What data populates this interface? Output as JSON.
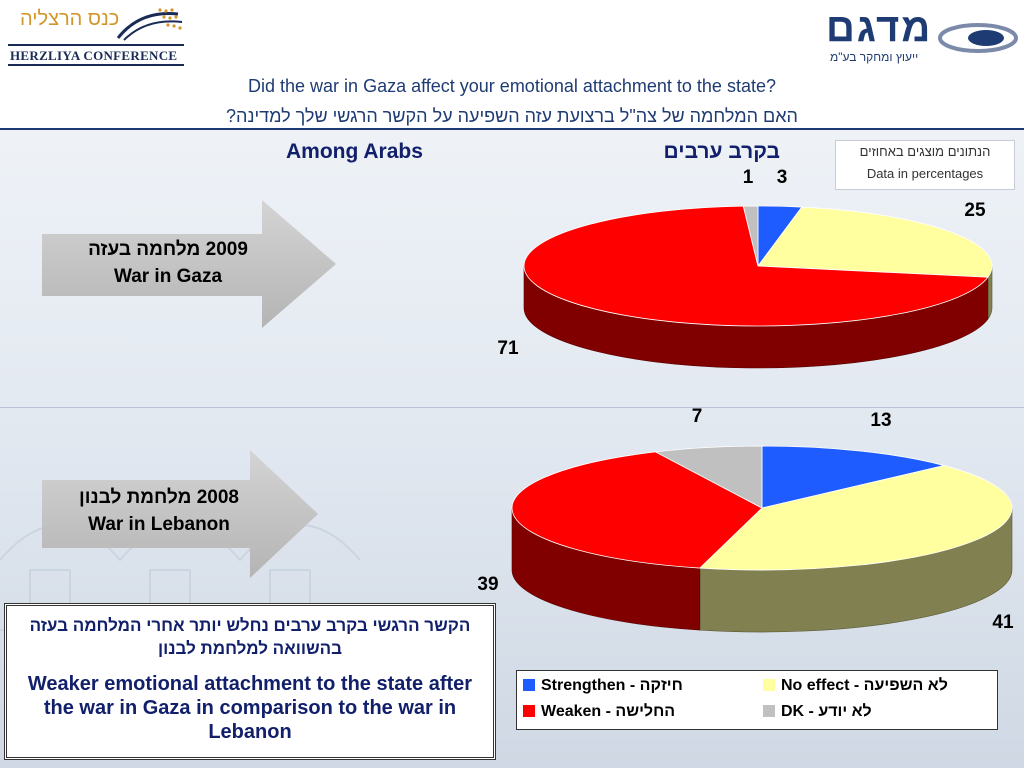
{
  "header": {
    "left_logo_hebrew": "כנס הרצליה",
    "left_logo_english": "HERZLIYA CONFERENCE",
    "right_logo_name": "מדגם",
    "right_logo_sub": "ייעוץ ומחקר בע\"מ"
  },
  "question": {
    "en": "Did the war in Gaza affect your emotional attachment to the state?",
    "he": "האם המלחמה של צה\"ל ברצועת עזה השפיעה על הקשר הרגשי שלך למדינה?"
  },
  "subtitle": {
    "en": "Among Arabs",
    "he": "בקרב ערבים"
  },
  "note": {
    "he": "הנתונים מוצגים באחוזים",
    "en": "Data in percentages"
  },
  "arrows": [
    {
      "he": "2009 מלחמה בעזה",
      "en": "War in Gaza"
    },
    {
      "he": "2008 מלחמת לבנון",
      "en": "War in Lebanon"
    }
  ],
  "takeaway": {
    "he": "הקשר הרגשי בקרב ערבים נחלש יותר אחרי המלחמה בעזה בהשוואה למלחמת לבנון",
    "en": "Weaker emotional attachment to the state after the war in Gaza in comparison to the war in Lebanon"
  },
  "legend": [
    {
      "label": "Strengthen - חיזקה",
      "color": "#1e5cff"
    },
    {
      "label": "No effect - לא השפיעה",
      "color": "#ffffa0"
    },
    {
      "label": "Weaken - החלישה",
      "color": "#ff0000"
    },
    {
      "label": "DK - לא יודע",
      "color": "#c0c0c0"
    }
  ],
  "chart_data": [
    {
      "type": "pie",
      "title": "2009 מלחמה בעזה / War in Gaza",
      "categories": [
        "Strengthen",
        "No effect",
        "Weaken",
        "DK"
      ],
      "values": [
        3,
        25,
        71,
        1
      ],
      "colors": [
        "#1e5cff",
        "#ffffa0",
        "#ff0000",
        "#c0c0c0"
      ]
    },
    {
      "type": "pie",
      "title": "2008 מלחמת לבנון / War in Lebanon",
      "categories": [
        "Strengthen",
        "No effect",
        "Weaken",
        "DK"
      ],
      "values": [
        13,
        41,
        39,
        7
      ],
      "colors": [
        "#1e5cff",
        "#ffffa0",
        "#ff0000",
        "#c0c0c0"
      ]
    }
  ]
}
